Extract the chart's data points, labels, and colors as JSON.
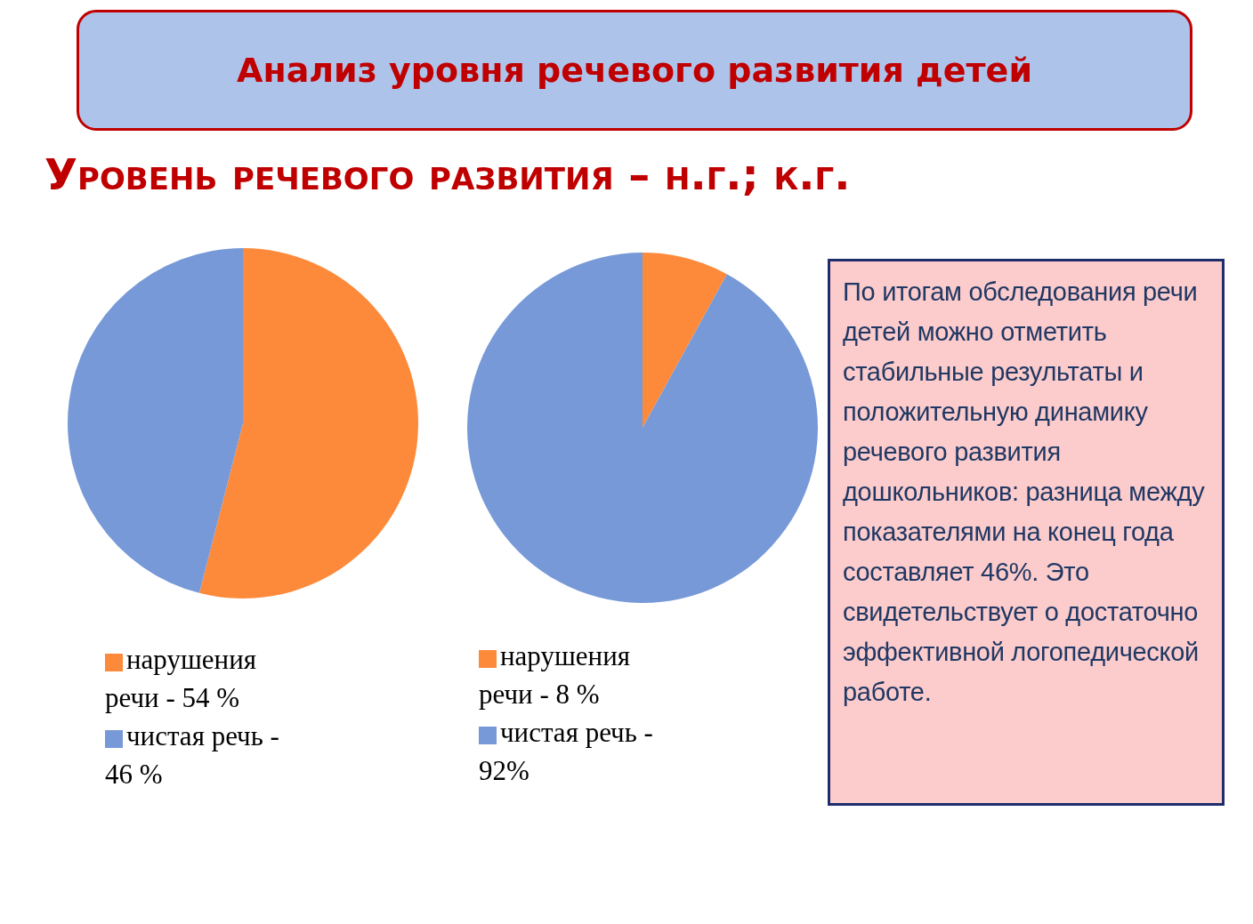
{
  "chart_data": [
    {
      "type": "pie",
      "title": "Анализ уровня речевого развития детей",
      "subtitle": "Уровень речевого развития – н.г.; к.г.",
      "categories": [
        "нарушения речи - 54 %",
        "чистая речь - 46 %"
      ],
      "values": [
        54,
        46
      ],
      "colors": [
        "#fd8a3b",
        "#7799d8"
      ],
      "legend": "bottom"
    },
    {
      "type": "pie",
      "categories": [
        "нарушения речи - 8 %",
        "чистая речь - 92%"
      ],
      "values": [
        8,
        92
      ],
      "colors": [
        "#fd8a3b",
        "#7799d8"
      ],
      "legend": "bottom"
    },
    {
      "type": "other",
      "annotations": [
        "По итогам обследования речи детей можно отметить стабильные результаты и положительную динамику речевого развития дошкольников: разница между показателями на конец года составляет 46%. Это свидетельствует о достаточно эффективной логопедической работе."
      ]
    }
  ]
}
